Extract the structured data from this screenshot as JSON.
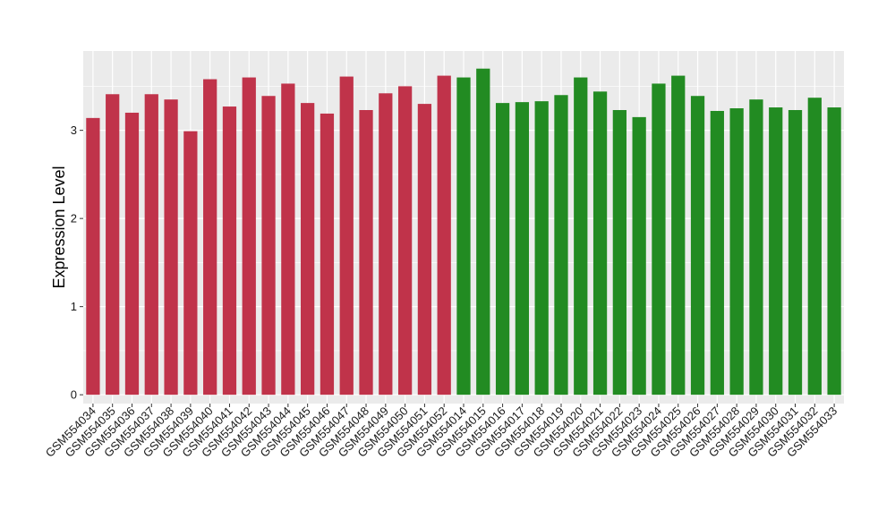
{
  "chart_data": {
    "type": "bar",
    "title": "",
    "xlabel": "",
    "ylabel": "Expression Level",
    "ylim": [
      -0.1,
      3.9
    ],
    "yticks": [
      0,
      1,
      2,
      3
    ],
    "grid": true,
    "legend": "none",
    "colors": {
      "red_group": "#c0334a",
      "green_group": "#228b22",
      "panel_background": "#ebebeb",
      "grid_line": "#ffffff"
    },
    "categories": [
      "GSM554034",
      "GSM554035",
      "GSM554036",
      "GSM554037",
      "GSM554038",
      "GSM554039",
      "GSM554040",
      "GSM554041",
      "GSM554042",
      "GSM554043",
      "GSM554044",
      "GSM554045",
      "GSM554046",
      "GSM554047",
      "GSM554048",
      "GSM554049",
      "GSM554050",
      "GSM554051",
      "GSM554052",
      "GSM554014",
      "GSM554015",
      "GSM554016",
      "GSM554017",
      "GSM554018",
      "GSM554019",
      "GSM554020",
      "GSM554021",
      "GSM554022",
      "GSM554023",
      "GSM554024",
      "GSM554025",
      "GSM554026",
      "GSM554027",
      "GSM554028",
      "GSM554029",
      "GSM554030",
      "GSM554031",
      "GSM554032",
      "GSM554033"
    ],
    "values": [
      3.14,
      3.41,
      3.2,
      3.41,
      3.35,
      2.99,
      3.58,
      3.27,
      3.6,
      3.39,
      3.53,
      3.31,
      3.19,
      3.61,
      3.23,
      3.42,
      3.5,
      3.3,
      3.62,
      3.6,
      3.7,
      3.31,
      3.32,
      3.33,
      3.4,
      3.6,
      3.44,
      3.23,
      3.15,
      3.53,
      3.62,
      3.39,
      3.22,
      3.25,
      3.35,
      3.26,
      3.23,
      3.37,
      3.26
    ],
    "groups": [
      "red",
      "red",
      "red",
      "red",
      "red",
      "red",
      "red",
      "red",
      "red",
      "red",
      "red",
      "red",
      "red",
      "red",
      "red",
      "red",
      "red",
      "red",
      "red",
      "green",
      "green",
      "green",
      "green",
      "green",
      "green",
      "green",
      "green",
      "green",
      "green",
      "green",
      "green",
      "green",
      "green",
      "green",
      "green",
      "green",
      "green",
      "green",
      "green"
    ]
  }
}
